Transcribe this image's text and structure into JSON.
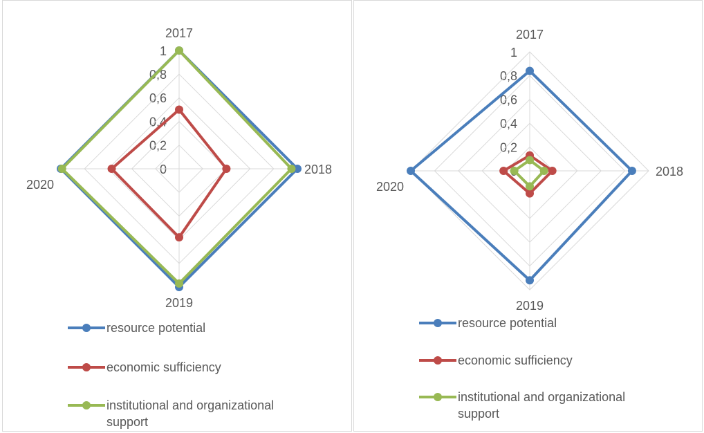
{
  "chart_data": [
    {
      "type": "radar",
      "categories": [
        "2017",
        "2018",
        "2019",
        "2020"
      ],
      "ylim": [
        0,
        1
      ],
      "yticks": [
        0,
        {
          "value": 0.2,
          "label": "0,2"
        },
        {
          "value": 0.4,
          "label": "0,4"
        },
        {
          "value": 0.6,
          "label": "0,6"
        },
        {
          "value": 0.8,
          "label": "0,8"
        },
        1
      ],
      "series": [
        {
          "name": "resource potential",
          "color": "#4a7ebb",
          "values": [
            1,
            1,
            1,
            1
          ]
        },
        {
          "name": "economic sufficiency",
          "color": "#be4b48",
          "values": [
            0.5,
            0.4,
            0.58,
            0.57
          ]
        },
        {
          "name": "institutional and organizational support",
          "color": "#98b954",
          "values": [
            1,
            0.95,
            0.97,
            0.99
          ]
        }
      ]
    },
    {
      "type": "radar",
      "categories": [
        "2017",
        "2018",
        "2019",
        "2020"
      ],
      "ylim": [
        0,
        1
      ],
      "yticks": [
        0,
        {
          "value": 0.2,
          "label": "0,2"
        },
        {
          "value": 0.4,
          "label": "0,4"
        },
        {
          "value": 0.6,
          "label": "0,6"
        },
        {
          "value": 0.8,
          "label": "0,8"
        },
        1
      ],
      "series": [
        {
          "name": "resource potential",
          "color": "#4a7ebb",
          "values": [
            0.84,
            0.86,
            0.92,
            1
          ]
        },
        {
          "name": "economic sufficiency",
          "color": "#be4b48",
          "values": [
            0.13,
            0.19,
            0.19,
            0.22
          ]
        },
        {
          "name": "institutional and organizational support",
          "color": "#98b954",
          "values": [
            0.09,
            0.12,
            0.13,
            0.13
          ]
        }
      ]
    }
  ]
}
